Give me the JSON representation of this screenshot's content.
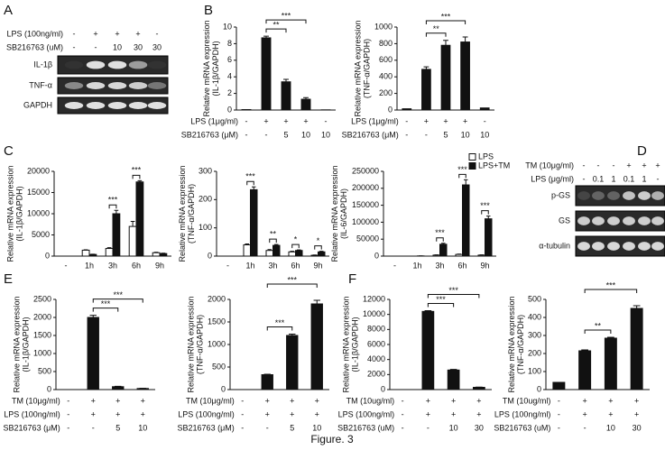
{
  "panels": [
    "A",
    "B",
    "C",
    "D",
    "E",
    "F"
  ],
  "caption": "Figure. 3",
  "blots": [
    {
      "conditions": [
        {
          "label": "LPS (100ng/ml)",
          "values": [
            "-",
            "+",
            "+",
            "+",
            "-"
          ]
        },
        {
          "label": "SB216763 (uM)",
          "values": [
            "-",
            "-",
            "10",
            "30",
            "30"
          ]
        }
      ],
      "bands": [
        "IL-1β",
        "TNF-α",
        "GAPDH"
      ]
    },
    {
      "conditions": [
        {
          "label": "TM (10μg/ml)",
          "values": [
            "-",
            "-",
            "-",
            "+",
            "+",
            "+"
          ]
        },
        {
          "label": "LPS (μg/ml)",
          "values": [
            "-",
            "0.1",
            "1",
            "0.1",
            "1",
            "-"
          ]
        }
      ],
      "bands": [
        "p-GS",
        "GS",
        "α-tubulin"
      ]
    }
  ],
  "chart_data": [
    {
      "type": "bar",
      "ylabel": [
        "Relative mRNA expression",
        "(IL-1β/GAPDH)"
      ],
      "ylim": [
        0,
        10
      ],
      "yticks": [
        0,
        2,
        4,
        6,
        8,
        10
      ],
      "color": "#111111",
      "values": [
        0.05,
        8.7,
        3.4,
        1.3,
        0.02
      ],
      "errors": [
        0,
        0.2,
        0.3,
        0.2,
        0
      ],
      "conditions": [
        {
          "label": "LPS (1μg/ml)",
          "values": [
            "-",
            "+",
            "+",
            "+",
            "-"
          ]
        },
        {
          "label": "SB216763 (μM)",
          "values": [
            "-",
            "-",
            "5",
            "10",
            "10"
          ]
        }
      ],
      "brackets": [
        {
          "from": 1,
          "to": 2,
          "label": "**"
        },
        {
          "from": 1,
          "to": 3,
          "label": "***"
        }
      ]
    },
    {
      "type": "bar",
      "ylabel": [
        "Relative mRNA expression",
        "(TNF-α/GAPDH)"
      ],
      "ylim": [
        0,
        1000
      ],
      "yticks": [
        0,
        200,
        400,
        600,
        800,
        1000
      ],
      "color": "#111111",
      "values": [
        15,
        490,
        780,
        820,
        25
      ],
      "errors": [
        0,
        30,
        60,
        60,
        0
      ],
      "conditions": [
        {
          "label": "LPS (1μg/ml)",
          "values": [
            "-",
            "+",
            "+",
            "+",
            "-"
          ]
        },
        {
          "label": "SB216763 (μM)",
          "values": [
            "-",
            "-",
            "5",
            "10",
            "10"
          ]
        }
      ],
      "brackets": [
        {
          "from": 1,
          "to": 2,
          "label": "**"
        },
        {
          "from": 1,
          "to": 3,
          "label": "***"
        }
      ]
    },
    {
      "type": "grouped-bar",
      "ylabel": [
        "Relative mRNA expression",
        "(IL-1β/GAPDH)"
      ],
      "ylim": [
        0,
        20000
      ],
      "yticks": [
        0,
        5000,
        10000,
        15000,
        20000
      ],
      "categories": [
        "-",
        "1h",
        "3h",
        "6h",
        "9h"
      ],
      "series": [
        {
          "color": "#ffffff",
          "values": [
            0,
            1400,
            1800,
            7000,
            800
          ],
          "errors": [
            0,
            100,
            200,
            1200,
            100
          ]
        },
        {
          "color": "#111111",
          "values": [
            0,
            400,
            10000,
            17500,
            600
          ],
          "errors": [
            0,
            50,
            800,
            300,
            100
          ]
        }
      ],
      "brackets": [
        {
          "at": 2,
          "label": "***"
        },
        {
          "at": 3,
          "label": "***"
        }
      ]
    },
    {
      "type": "grouped-bar",
      "ylabel": [
        "Relative mRNA expression",
        "(TNF-α/GAPDH)"
      ],
      "ylim": [
        0,
        300
      ],
      "yticks": [
        0,
        100,
        200,
        300
      ],
      "categories": [
        "-",
        "1h",
        "3h",
        "6h",
        "9h"
      ],
      "series": [
        {
          "color": "#ffffff",
          "values": [
            0,
            40,
            20,
            15,
            3
          ],
          "errors": [
            0,
            3,
            3,
            2,
            1
          ]
        },
        {
          "color": "#111111",
          "values": [
            0,
            235,
            38,
            20,
            15
          ],
          "errors": [
            0,
            10,
            3,
            2,
            2
          ]
        }
      ],
      "brackets": [
        {
          "at": 1,
          "label": "***"
        },
        {
          "at": 2,
          "label": "**"
        },
        {
          "at": 3,
          "label": "*"
        },
        {
          "at": 4,
          "label": "*"
        }
      ]
    },
    {
      "type": "grouped-bar",
      "ylabel": [
        "Relative mRNA expression",
        "(IL-6/GAPDH)"
      ],
      "ylim": [
        0,
        250000
      ],
      "yticks": [
        0,
        50000,
        100000,
        150000,
        200000,
        250000
      ],
      "categories": [
        "-",
        "1h",
        "3h",
        "6h",
        "9h"
      ],
      "legend": "upper right",
      "series": [
        {
          "name": "LPS",
          "color": "#ffffff",
          "values": [
            0,
            0,
            3000,
            5000,
            3000
          ],
          "errors": [
            0,
            0,
            500,
            1000,
            500
          ]
        },
        {
          "name": "LPS+TM",
          "color": "#111111",
          "values": [
            0,
            500,
            35000,
            210000,
            110000
          ],
          "errors": [
            0,
            100,
            3000,
            15000,
            8000
          ]
        }
      ],
      "brackets": [
        {
          "at": 2,
          "label": "***"
        },
        {
          "at": 3,
          "label": "***"
        },
        {
          "at": 4,
          "label": "***"
        }
      ]
    },
    {
      "type": "bar",
      "ylabel": [
        "Relative mRNA expression",
        "(IL-1β/GAPDH)"
      ],
      "ylim": [
        0,
        2500
      ],
      "yticks": [
        0,
        500,
        1000,
        1500,
        2000,
        2500
      ],
      "color": "#111111",
      "values": [
        0,
        2000,
        80,
        30
      ],
      "errors": [
        0,
        60,
        10,
        5
      ],
      "conditions": [
        {
          "label": "TM (10μg/ml)",
          "values": [
            "-",
            "+",
            "+",
            "+"
          ]
        },
        {
          "label": "LPS (100ng/ml)",
          "values": [
            "-",
            "+",
            "+",
            "+"
          ]
        },
        {
          "label": "SB216763 (μM)",
          "values": [
            "-",
            "-",
            "5",
            "10"
          ]
        }
      ],
      "brackets": [
        {
          "from": 1,
          "to": 2,
          "label": "***"
        },
        {
          "from": 1,
          "to": 3,
          "label": "***"
        }
      ]
    },
    {
      "type": "bar",
      "ylabel": [
        "Relative mRNA expression",
        "(TNF-α/GAPDH)"
      ],
      "ylim": [
        0,
        2000
      ],
      "yticks": [
        0,
        500,
        1000,
        1500,
        2000
      ],
      "color": "#111111",
      "values": [
        0,
        330,
        1200,
        1900
      ],
      "errors": [
        0,
        10,
        30,
        80
      ],
      "conditions": [
        {
          "label": "TM (10μg/ml)",
          "values": [
            "-",
            "+",
            "+",
            "+"
          ]
        },
        {
          "label": "LPS (100ng/ml)",
          "values": [
            "-",
            "+",
            "+",
            "+"
          ]
        },
        {
          "label": "SB216763 (μM)",
          "values": [
            "-",
            "-",
            "5",
            "10"
          ]
        }
      ],
      "brackets": [
        {
          "from": 1,
          "to": 2,
          "label": "***"
        },
        {
          "from": 1,
          "to": 3,
          "label": "***"
        }
      ]
    },
    {
      "type": "bar",
      "ylabel": [
        "Relative mRNA expression",
        "(IL-1β/GAPDH)"
      ],
      "ylim": [
        0,
        12000
      ],
      "yticks": [
        0,
        2000,
        4000,
        6000,
        8000,
        10000,
        12000
      ],
      "color": "#111111",
      "values": [
        0,
        10400,
        2600,
        300
      ],
      "errors": [
        0,
        100,
        80,
        30
      ],
      "conditions": [
        {
          "label": "TM (10ug/ml)",
          "values": [
            "-",
            "+",
            "+",
            "+"
          ]
        },
        {
          "label": "LPS (100ng/ml)",
          "values": [
            "-",
            "+",
            "+",
            "+"
          ]
        },
        {
          "label": "SB216763 (uM)",
          "values": [
            "-",
            "-",
            "10",
            "30"
          ]
        }
      ],
      "brackets": [
        {
          "from": 1,
          "to": 2,
          "label": "***"
        },
        {
          "from": 1,
          "to": 3,
          "label": "***"
        }
      ]
    },
    {
      "type": "bar",
      "ylabel": [
        "Relative mRNA expression",
        "(TNF-α/GAPDH)"
      ],
      "ylim": [
        0,
        500
      ],
      "yticks": [
        0,
        100,
        200,
        300,
        400,
        500
      ],
      "color": "#111111",
      "values": [
        40,
        215,
        285,
        450
      ],
      "errors": [
        0,
        5,
        5,
        15
      ],
      "conditions": [
        {
          "label": "TM (10ug/ml)",
          "values": [
            "-",
            "+",
            "+",
            "+"
          ]
        },
        {
          "label": "LPS (100ng/ml)",
          "values": [
            "-",
            "+",
            "+",
            "+"
          ]
        },
        {
          "label": "SB216763 (uM)",
          "values": [
            "-",
            "-",
            "10",
            "30"
          ]
        }
      ],
      "brackets": [
        {
          "from": 1,
          "to": 2,
          "label": "**"
        },
        {
          "from": 1,
          "to": 3,
          "label": "***"
        }
      ]
    }
  ]
}
